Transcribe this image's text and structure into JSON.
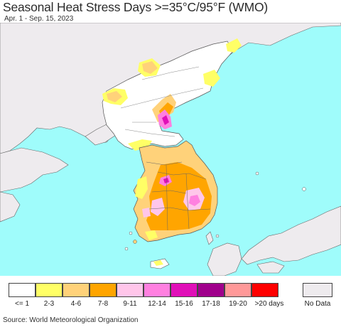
{
  "header": {
    "title": "Seasonal Heat Stress Days >=35°C/95°F (WMO)",
    "subtitle": "Apr. 1 - Sep. 15, 2023"
  },
  "legend": {
    "items": [
      {
        "label": "<= 1",
        "color": "#ffffff"
      },
      {
        "label": "2-3",
        "color": "#ffff66"
      },
      {
        "label": "4-6",
        "color": "#ffd27a"
      },
      {
        "label": "7-8",
        "color": "#ffa500"
      },
      {
        "label": "9-11",
        "color": "#ffc6ea"
      },
      {
        "label": "12-14",
        "color": "#ff80e0"
      },
      {
        "label": "15-16",
        "color": "#e010b8"
      },
      {
        "label": "17-18",
        "color": "#a0008c"
      },
      {
        "label": "19-20",
        "color": "#ff9999"
      },
      {
        "label": ">20 days",
        "color": "#ff0000"
      }
    ],
    "no_data": {
      "label": "No Data",
      "color": "#eeebee"
    }
  },
  "map": {
    "sea_color": "#9ffcfb",
    "land_color": "#eeebee",
    "border_color": "#555555"
  },
  "footer": {
    "source": "Source: World Meteorological Organization"
  }
}
